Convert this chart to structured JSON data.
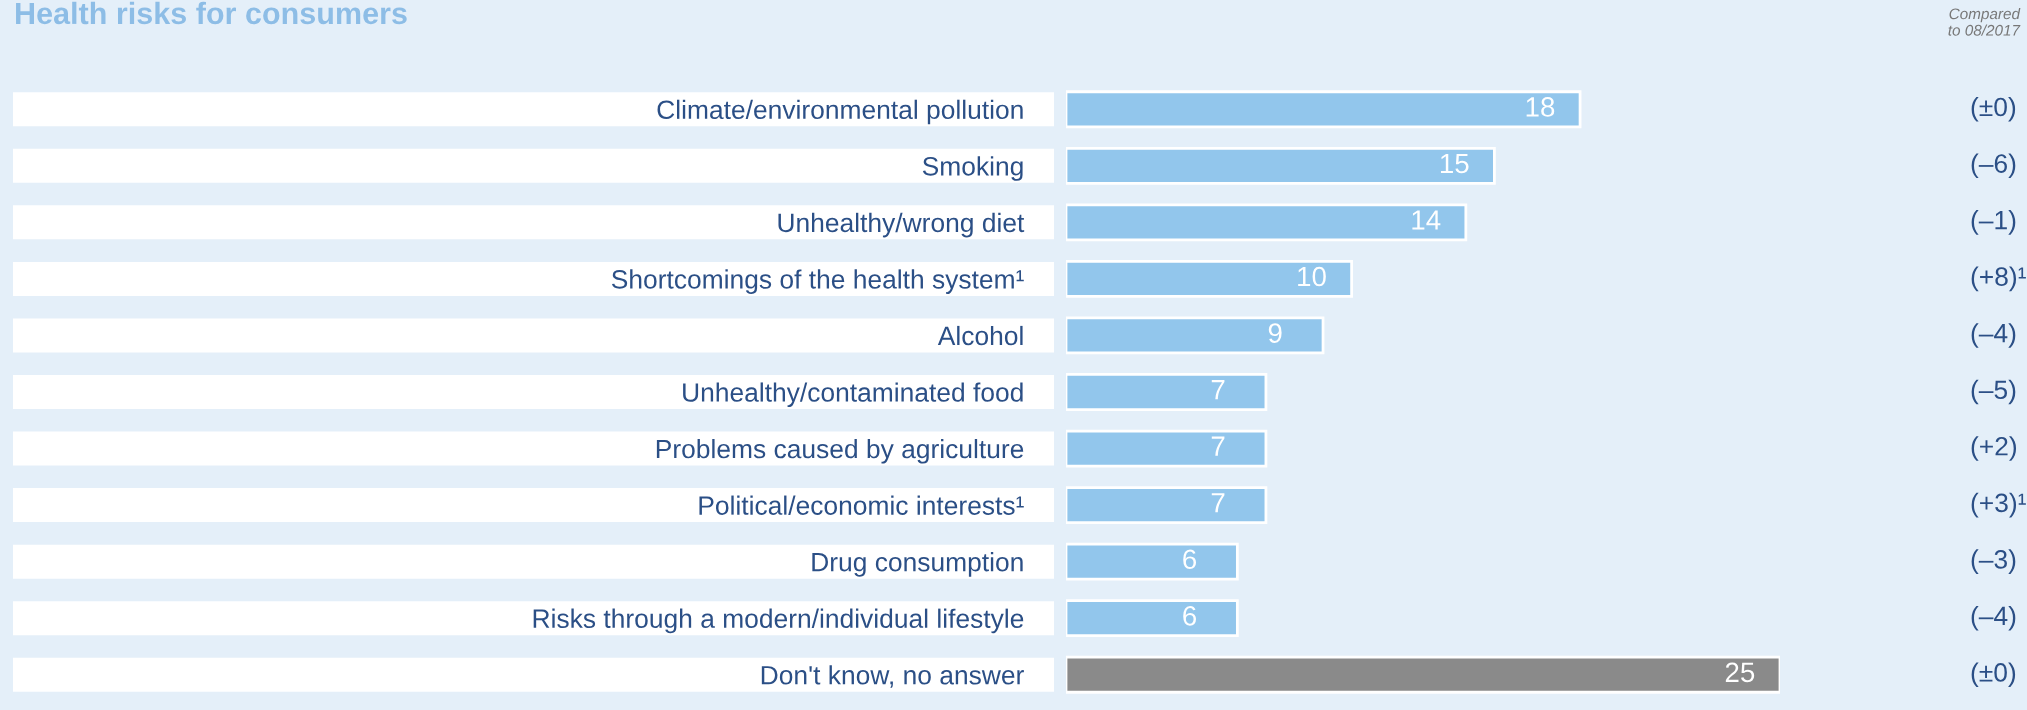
{
  "chart_data": {
    "type": "bar",
    "orientation": "horizontal",
    "xlim": [
      0,
      25
    ],
    "data_labels": true,
    "title": "Health risks for consumers",
    "categories": [
      "Climate/environmental pollution",
      "Smoking",
      "Unhealthy/wrong diet",
      "Shortcomings of the health system¹",
      "Alcohol",
      "Unhealthy/contaminated food",
      "Problems caused by agriculture",
      "Political/economic interests¹",
      "Drug consumption",
      "Risks through a modern/individual lifestyle",
      "Don't know, no answer"
    ],
    "values": [
      18,
      15,
      14,
      10,
      9,
      7,
      7,
      7,
      6,
      6,
      25
    ],
    "colors": [
      "#92c6ec",
      "#92c6ec",
      "#92c6ec",
      "#92c6ec",
      "#92c6ec",
      "#92c6ec",
      "#92c6ec",
      "#92c6ec",
      "#92c6ec",
      "#92c6ec",
      "#8a8a8a"
    ],
    "annotations": [
      "Compared\nto 08/2017",
      "(±0)",
      "(–6)",
      "(–1)",
      "(+8)¹",
      "(–4)",
      "(–5)",
      "(+2)",
      "(+3)¹",
      "(–3)",
      "(–4)",
      "(±0)"
    ]
  }
}
